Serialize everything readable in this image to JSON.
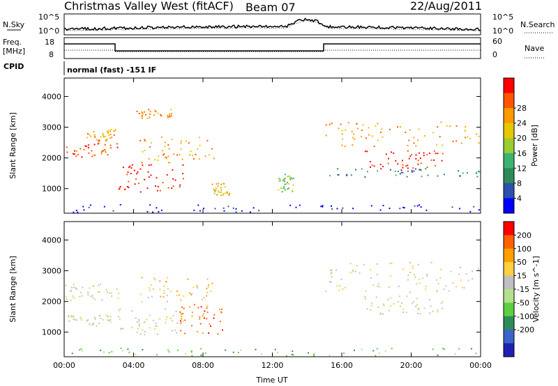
{
  "header": {
    "title": "Christmas Valley West (fitACF)",
    "beam": "Beam 07",
    "date": "22/Aug/2011"
  },
  "panels": {
    "nsky_label": "N.Sky",
    "nsearch_label": "N.Search",
    "freq_label": "Freq.",
    "freq_unit": "[MHz]",
    "cpid_label": "CPID",
    "nave_label": "Nave",
    "cpid_text": "normal (fast) -151 IF",
    "noise_ticks_left": [
      "10^5",
      "10^0"
    ],
    "noise_ticks_right": [
      "10^5",
      "10^0"
    ],
    "freq_ticks": [
      "18",
      "8"
    ],
    "nave_ticks": [
      "60",
      "0"
    ]
  },
  "colors": {
    "power": [
      "#0000ff",
      "#2c4fb0",
      "#2e8b57",
      "#3cb371",
      "#9acd32",
      "#e6c800",
      "#ff9900",
      "#ff5500",
      "#ff0000"
    ],
    "velocity": [
      "#2020b0",
      "#3c64c8",
      "#2e8b57",
      "#5dd040",
      "#b4e08c",
      "#c0c0c0",
      "#ffd040",
      "#ffa000",
      "#ff6000",
      "#ff0000"
    ],
    "scatter_gray": "#c0c0c0"
  },
  "chart_data": [
    {
      "type": "heatmap",
      "name": "power",
      "xlabel": "",
      "ylabel": "Slant Range [km]",
      "x_ticks": [
        "00:00",
        "04:00",
        "08:00",
        "12:00",
        "16:00",
        "20:00",
        "00:00"
      ],
      "y_ticks": [
        1000,
        2000,
        3000,
        4000
      ],
      "ylim": [
        200,
        4600
      ],
      "colorbar": {
        "label": "Power [dB]",
        "ticks": [
          4,
          8,
          12,
          16,
          20,
          24,
          28
        ]
      },
      "bands": [
        {
          "t0": 0,
          "t1": 3.1,
          "r0": 2050,
          "r1": 2500,
          "level": 7
        },
        {
          "t0": 1.2,
          "t1": 3.0,
          "r0": 2550,
          "r1": 3000,
          "level": 6
        },
        {
          "t0": 3.0,
          "t1": 7.0,
          "r0": 900,
          "r1": 1800,
          "level": 8
        },
        {
          "t0": 4.3,
          "t1": 8.6,
          "r0": 1800,
          "r1": 2700,
          "level": 6
        },
        {
          "t0": 4.0,
          "t1": 6.3,
          "r0": 3300,
          "r1": 3600,
          "level": 6
        },
        {
          "t0": 8.5,
          "t1": 9.5,
          "r0": 800,
          "r1": 1200,
          "level": 5
        },
        {
          "t0": 12.3,
          "t1": 13.2,
          "r0": 900,
          "r1": 1500,
          "level": 4
        },
        {
          "t0": 15.0,
          "t1": 24.0,
          "r0": 2400,
          "r1": 3200,
          "level": 6
        },
        {
          "t0": 17.2,
          "t1": 21.8,
          "r0": 1600,
          "r1": 2300,
          "level": 8
        },
        {
          "t0": 15.2,
          "t1": 24.0,
          "r0": 1400,
          "r1": 1700,
          "level": 2
        },
        {
          "t0": 0,
          "t1": 24.0,
          "r0": 200,
          "r1": 500,
          "level": 0
        }
      ]
    },
    {
      "type": "heatmap",
      "name": "velocity",
      "xlabel": "Time UT",
      "ylabel": "Slant Range [km]",
      "x_ticks": [
        "00:00",
        "04:00",
        "08:00",
        "12:00",
        "16:00",
        "20:00",
        "00:00"
      ],
      "y_ticks": [
        1000,
        2000,
        3000,
        4000
      ],
      "ylim": [
        200,
        4600
      ],
      "colorbar": {
        "label": "Velocity [m s^-1]",
        "ticks": [
          200,
          100,
          50,
          15,
          -15,
          -50,
          -100,
          -200
        ]
      },
      "bands": [
        {
          "t0": 0,
          "t1": 3.1,
          "r0": 2050,
          "r1": 2600,
          "level": 5
        },
        {
          "t0": 0,
          "t1": 2.7,
          "r0": 1200,
          "r1": 1600,
          "level": 5
        },
        {
          "t0": 3.0,
          "t1": 7.0,
          "r0": 900,
          "r1": 1800,
          "level": 5
        },
        {
          "t0": 4.3,
          "t1": 8.6,
          "r0": 2000,
          "r1": 2800,
          "level": 6
        },
        {
          "t0": 6.6,
          "t1": 9.1,
          "r0": 950,
          "r1": 1950,
          "level": 8
        },
        {
          "t0": 15.0,
          "t1": 24.0,
          "r0": 2300,
          "r1": 3300,
          "level": 5
        },
        {
          "t0": 17.2,
          "t1": 21.8,
          "r0": 1600,
          "r1": 2200,
          "level": 5
        },
        {
          "t0": 0,
          "t1": 24.0,
          "r0": 200,
          "r1": 500,
          "level": 3
        }
      ]
    }
  ]
}
